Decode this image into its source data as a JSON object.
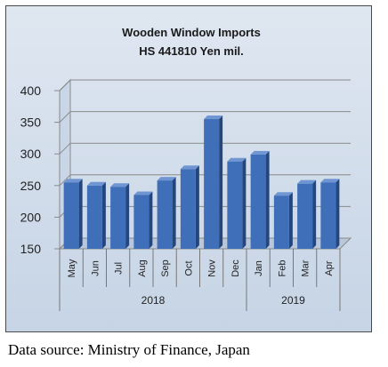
{
  "chart_data": {
    "type": "bar",
    "title": "Wooden Window Imports",
    "subtitle": "HS 441810 Yen mil.",
    "categories": [
      "May",
      "Jun",
      "Jul",
      "Aug",
      "Sep",
      "Oct",
      "Nov",
      "Dec",
      "Jan",
      "Feb",
      "Mar",
      "Apr"
    ],
    "groups": [
      {
        "label": "2018",
        "count": 8
      },
      {
        "label": "2019",
        "count": 4
      }
    ],
    "values": [
      255,
      250,
      248,
      235,
      258,
      276,
      355,
      288,
      299,
      234,
      253,
      255
    ],
    "ylim": [
      150,
      400
    ],
    "yticks": [
      150,
      200,
      250,
      300,
      350,
      400
    ],
    "bar_color": "#3f6fb8",
    "grid": true,
    "legend": "none"
  },
  "source": "Data source: Ministry of Finance, Japan"
}
